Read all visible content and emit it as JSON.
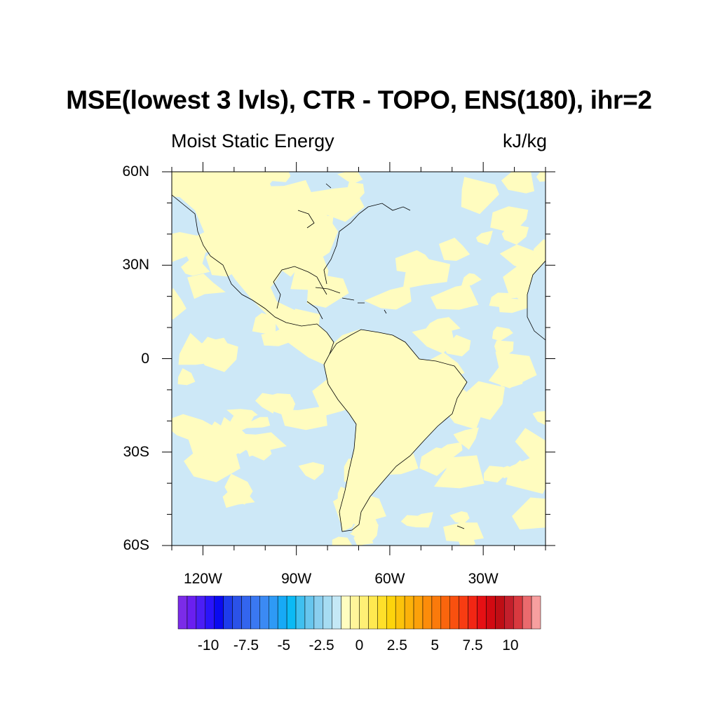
{
  "title": "MSE(lowest 3 lvls), CTR - TOPO, ENS(180), ihr=2",
  "subtitle_left": "Moist Static Energy",
  "subtitle_right": "kJ/kg",
  "map": {
    "lat_range": [
      -60,
      60
    ],
    "lon_range": [
      -130,
      -10
    ],
    "lat_labels": [
      "60N",
      "30N",
      "0",
      "30S",
      "60S"
    ],
    "lat_values": [
      60,
      30,
      0,
      -30,
      -60
    ],
    "lon_labels": [
      "120W",
      "90W",
      "60W",
      "30W"
    ],
    "lon_values": [
      -120,
      -90,
      -60,
      -30
    ],
    "field_colors": {
      "negative": "#cde8f7",
      "positive": "#fffcbf",
      "coastline": "#000000"
    }
  },
  "colorbar": {
    "labels": [
      "-10",
      "-7.5",
      "-5",
      "-2.5",
      "0",
      "2.5",
      "5",
      "7.5",
      "10"
    ],
    "label_values": [
      -10,
      -7.5,
      -5,
      -2.5,
      0,
      2.5,
      5,
      7.5,
      10
    ],
    "range": [
      -12,
      12
    ],
    "colors": [
      "#7b2be8",
      "#6a1ff0",
      "#4b1ef5",
      "#2a15fa",
      "#0a0af0",
      "#1e3cec",
      "#2b52e8",
      "#3365ee",
      "#3a78f2",
      "#3b8af4",
      "#2e9af6",
      "#17aaf6",
      "#0bbaf5",
      "#3fc0f0",
      "#67c6ee",
      "#8acfef",
      "#a6dcf2",
      "#c4e8f6",
      "#fffdc0",
      "#fff59a",
      "#fff075",
      "#ffe950",
      "#ffe02a",
      "#fdd40c",
      "#fcc30b",
      "#fcb20a",
      "#fca10a",
      "#fc8c0a",
      "#fb7a0b",
      "#fa650d",
      "#f9500f",
      "#f83c12",
      "#f22614",
      "#e61014",
      "#d20a12",
      "#bf0e15",
      "#c41f2b",
      "#d9393f",
      "#ea6a6d",
      "#f79f9f"
    ]
  }
}
